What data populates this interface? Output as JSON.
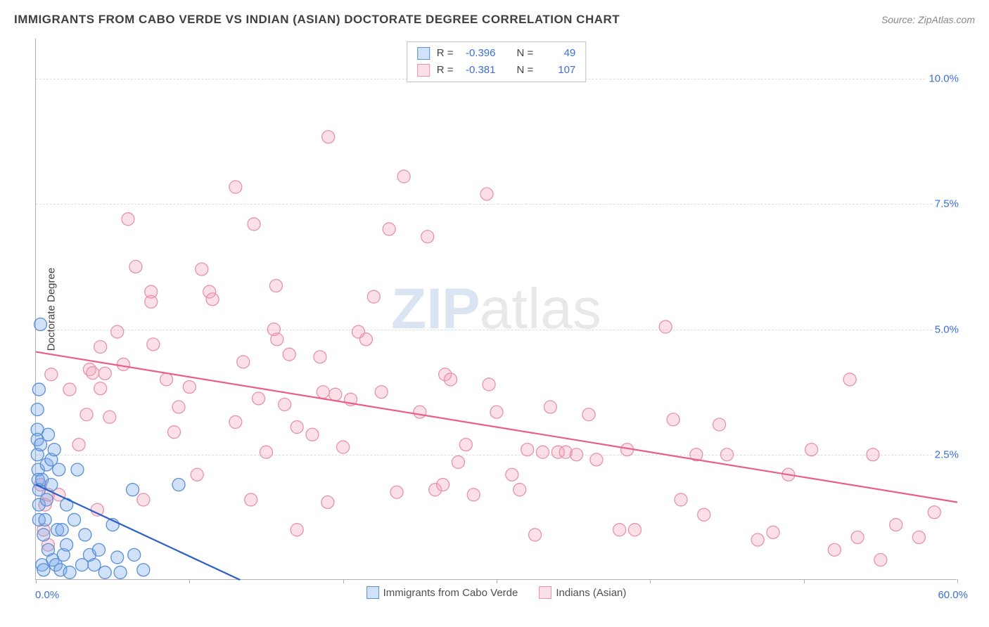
{
  "title": "IMMIGRANTS FROM CABO VERDE VS INDIAN (ASIAN) DOCTORATE DEGREE CORRELATION CHART",
  "source_prefix": "Source: ",
  "source_name": "ZipAtlas.com",
  "yaxis_title": "Doctorate Degree",
  "watermark_a": "ZIP",
  "watermark_b": "atlas",
  "chart": {
    "type": "scatter",
    "xlim": [
      0,
      60
    ],
    "ylim": [
      0,
      10.8
    ],
    "x_ticks": [
      0,
      10,
      20,
      30,
      40,
      50,
      60
    ],
    "y_grid": [
      2.5,
      5.0,
      7.5,
      10.0
    ],
    "x_min_label": "0.0%",
    "x_max_label": "60.0%",
    "y_labels": [
      "2.5%",
      "5.0%",
      "7.5%",
      "10.0%"
    ],
    "background": "#ffffff",
    "grid_color": "#dddddd",
    "axis_color": "#b0b0b0",
    "tick_label_color": "#3b6fd9",
    "marker_radius": 9,
    "marker_stroke_width": 1.3,
    "trend_line_width": 2.2,
    "series": [
      {
        "name": "Immigrants from Cabo Verde",
        "fill": "rgba(120,170,235,0.35)",
        "stroke": "#5a8fd6",
        "trend_color": "#2b5fc9",
        "R_label": "R =",
        "R": "-0.396",
        "N_label": "N =",
        "N": "49",
        "trend": {
          "x1": 0,
          "y1": 1.9,
          "x2": 13.3,
          "y2": 0
        },
        "points": [
          [
            0.1,
            3.4
          ],
          [
            0.1,
            3.0
          ],
          [
            0.1,
            2.8
          ],
          [
            0.1,
            2.5
          ],
          [
            0.15,
            2.2
          ],
          [
            0.15,
            2.0
          ],
          [
            0.2,
            1.8
          ],
          [
            0.2,
            1.5
          ],
          [
            0.2,
            1.2
          ],
          [
            0.2,
            3.8
          ],
          [
            0.3,
            2.7
          ],
          [
            0.3,
            5.1
          ],
          [
            0.4,
            2.0
          ],
          [
            0.4,
            0.3
          ],
          [
            0.5,
            0.2
          ],
          [
            0.5,
            0.9
          ],
          [
            0.6,
            1.2
          ],
          [
            0.7,
            2.3
          ],
          [
            0.7,
            1.6
          ],
          [
            0.8,
            2.9
          ],
          [
            0.8,
            0.6
          ],
          [
            1.0,
            2.4
          ],
          [
            1.0,
            1.9
          ],
          [
            1.1,
            0.4
          ],
          [
            1.2,
            2.6
          ],
          [
            1.3,
            0.3
          ],
          [
            1.4,
            1.0
          ],
          [
            1.5,
            2.2
          ],
          [
            1.6,
            0.2
          ],
          [
            1.7,
            1.0
          ],
          [
            1.8,
            0.5
          ],
          [
            2.0,
            1.5
          ],
          [
            2.0,
            0.7
          ],
          [
            2.2,
            0.15
          ],
          [
            2.5,
            1.2
          ],
          [
            2.7,
            2.2
          ],
          [
            3.0,
            0.3
          ],
          [
            3.2,
            0.9
          ],
          [
            3.5,
            0.5
          ],
          [
            3.8,
            0.3
          ],
          [
            4.1,
            0.6
          ],
          [
            4.5,
            0.15
          ],
          [
            5.0,
            1.1
          ],
          [
            5.3,
            0.45
          ],
          [
            5.5,
            0.15
          ],
          [
            6.3,
            1.8
          ],
          [
            6.4,
            0.5
          ],
          [
            7.0,
            0.2
          ],
          [
            9.3,
            1.9
          ]
        ]
      },
      {
        "name": "Indians (Asian)",
        "fill": "rgba(245,160,185,0.32)",
        "stroke": "#e792aa",
        "trend_color": "#e85f87",
        "R_label": "R =",
        "R": "-0.381",
        "N_label": "N =",
        "N": "107",
        "trend": {
          "x1": 0,
          "y1": 4.55,
          "x2": 60,
          "y2": 1.55
        },
        "points": [
          [
            0.3,
            1.9
          ],
          [
            0.5,
            1.0
          ],
          [
            0.6,
            1.5
          ],
          [
            0.8,
            0.7
          ],
          [
            0.8,
            1.7
          ],
          [
            1.0,
            4.1
          ],
          [
            1.5,
            1.7
          ],
          [
            2.2,
            3.8
          ],
          [
            2.8,
            2.7
          ],
          [
            3.3,
            3.3
          ],
          [
            3.5,
            4.2
          ],
          [
            3.7,
            4.13
          ],
          [
            4.0,
            1.4
          ],
          [
            4.2,
            4.65
          ],
          [
            4.2,
            3.82
          ],
          [
            4.5,
            4.12
          ],
          [
            4.8,
            3.25
          ],
          [
            5.3,
            4.95
          ],
          [
            5.7,
            4.3
          ],
          [
            6.0,
            7.2
          ],
          [
            6.5,
            6.25
          ],
          [
            7.0,
            1.6
          ],
          [
            7.5,
            5.75
          ],
          [
            7.5,
            5.55
          ],
          [
            7.64,
            4.7
          ],
          [
            8.5,
            4.0
          ],
          [
            9.0,
            2.95
          ],
          [
            9.3,
            3.45
          ],
          [
            10.0,
            3.85
          ],
          [
            10.5,
            2.1
          ],
          [
            10.8,
            6.2
          ],
          [
            11.3,
            5.75
          ],
          [
            11.5,
            5.6
          ],
          [
            13.0,
            3.15
          ],
          [
            13.0,
            7.84
          ],
          [
            13.5,
            4.35
          ],
          [
            14.0,
            1.6
          ],
          [
            14.2,
            7.1
          ],
          [
            14.5,
            3.62
          ],
          [
            15.0,
            2.55
          ],
          [
            15.5,
            5.0
          ],
          [
            15.7,
            4.8
          ],
          [
            15.64,
            5.87
          ],
          [
            16.2,
            3.5
          ],
          [
            16.5,
            4.5
          ],
          [
            17.0,
            1.0
          ],
          [
            17.0,
            3.05
          ],
          [
            18.0,
            2.9
          ],
          [
            18.5,
            4.45
          ],
          [
            18.7,
            3.75
          ],
          [
            19.0,
            1.55
          ],
          [
            19.04,
            8.84
          ],
          [
            19.5,
            3.7
          ],
          [
            20.0,
            2.65
          ],
          [
            20.5,
            3.6
          ],
          [
            21.0,
            4.95
          ],
          [
            21.5,
            4.8
          ],
          [
            22.0,
            5.65
          ],
          [
            22.5,
            3.75
          ],
          [
            23.0,
            7.0
          ],
          [
            23.5,
            1.75
          ],
          [
            23.96,
            8.05
          ],
          [
            25.0,
            3.35
          ],
          [
            25.5,
            6.85
          ],
          [
            26.0,
            1.8
          ],
          [
            26.5,
            1.9
          ],
          [
            26.64,
            4.1
          ],
          [
            27.0,
            4.0
          ],
          [
            27.5,
            2.35
          ],
          [
            28.0,
            2.7
          ],
          [
            28.5,
            1.7
          ],
          [
            29.36,
            7.7
          ],
          [
            29.5,
            3.9
          ],
          [
            30.0,
            3.35
          ],
          [
            31.0,
            2.1
          ],
          [
            31.5,
            1.8
          ],
          [
            32.0,
            2.6
          ],
          [
            32.5,
            0.9
          ],
          [
            33.0,
            2.55
          ],
          [
            33.5,
            3.45
          ],
          [
            34.0,
            2.55
          ],
          [
            34.5,
            2.55
          ],
          [
            35.2,
            2.5
          ],
          [
            36.0,
            3.3
          ],
          [
            36.5,
            2.4
          ],
          [
            38.0,
            1.0
          ],
          [
            38.5,
            2.6
          ],
          [
            39.0,
            1.0
          ],
          [
            41.0,
            5.05
          ],
          [
            41.5,
            3.2
          ],
          [
            42.0,
            1.6
          ],
          [
            43.0,
            2.5
          ],
          [
            43.5,
            1.3
          ],
          [
            44.5,
            3.1
          ],
          [
            45.0,
            2.5
          ],
          [
            47.0,
            0.8
          ],
          [
            48.0,
            0.95
          ],
          [
            49.0,
            2.1
          ],
          [
            50.5,
            2.6
          ],
          [
            52.0,
            0.6
          ],
          [
            53.0,
            4.0
          ],
          [
            53.5,
            0.85
          ],
          [
            54.5,
            2.5
          ],
          [
            55.0,
            0.4
          ],
          [
            56.0,
            1.1
          ],
          [
            57.5,
            0.85
          ],
          [
            58.5,
            1.35
          ]
        ]
      }
    ]
  }
}
